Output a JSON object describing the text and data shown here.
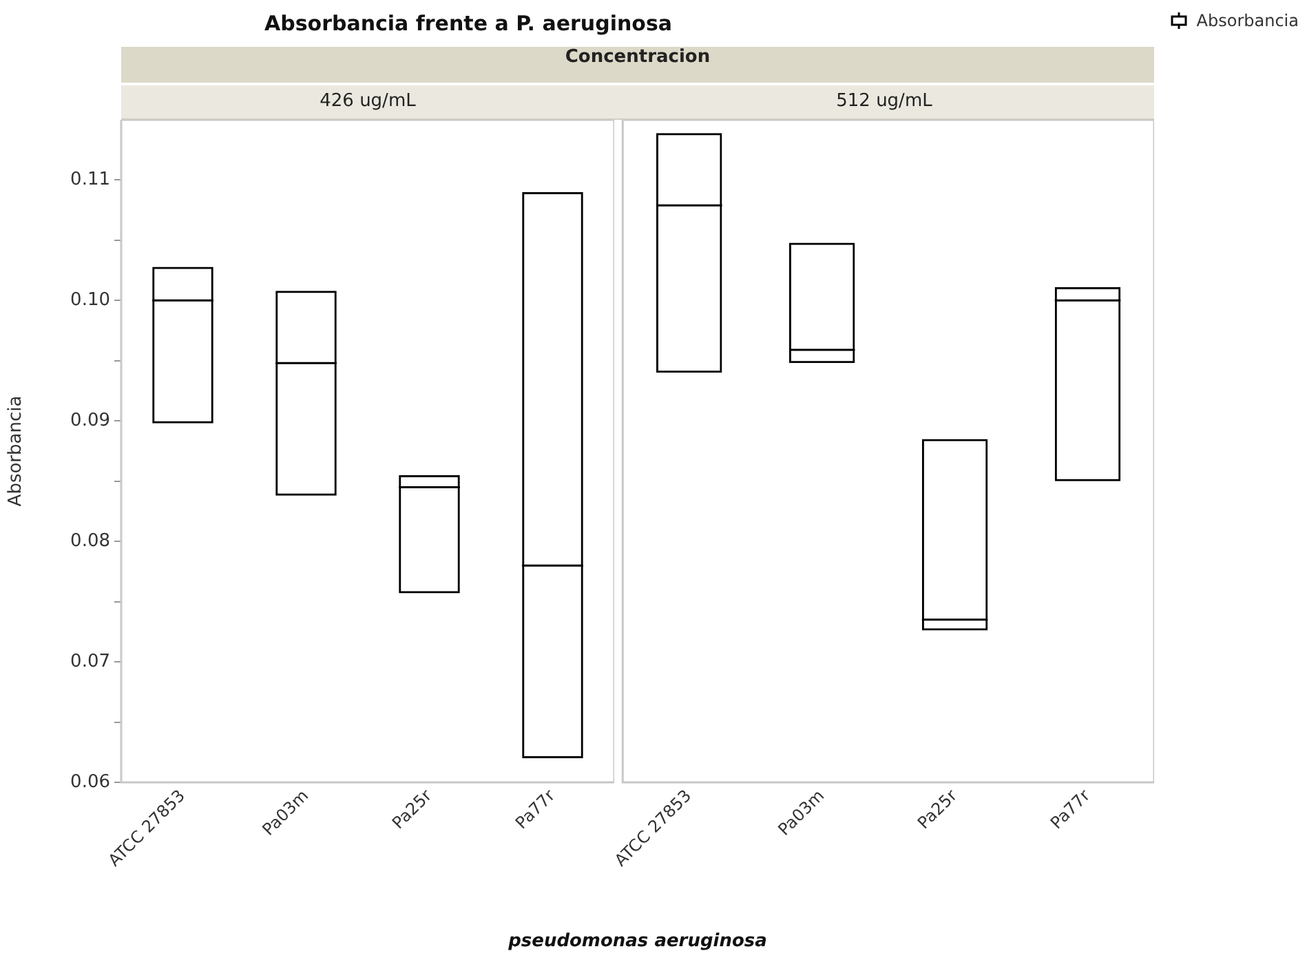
{
  "chart_data": [
    {
      "type": "box",
      "title": "Absorbancia frente a P. aeruginosa",
      "annotations": [
        "Concentracion"
      ],
      "subtitle": "426 ug/mL",
      "xlabel": "pseudomonas aeruginosa",
      "ylabel": "Absorbancia",
      "categories": [
        "ATCC 27853",
        "Pa03m",
        "Pa25r",
        "Pa77r"
      ],
      "series": [
        {
          "color": "#000000",
          "boxes": [
            {
              "low": 0.0898,
              "q1": 0.0898,
              "median": 0.1,
              "q3": 0.1028,
              "high": 0.1028
            },
            {
              "low": 0.0838,
              "q1": 0.0838,
              "median": 0.0948,
              "q3": 0.1008,
              "high": 0.1008
            },
            {
              "low": 0.0757,
              "q1": 0.0757,
              "median": 0.0845,
              "q3": 0.0855,
              "high": 0.0855
            },
            {
              "low": 0.062,
              "q1": 0.062,
              "median": 0.078,
              "q3": 0.109,
              "high": 0.109
            }
          ]
        }
      ],
      "ylim": [
        0.06,
        0.115
      ],
      "yticks": [
        0.06,
        {
          "value": 0.065,
          "label": null
        },
        0.07,
        {
          "value": 0.075,
          "label": null
        },
        0.08,
        {
          "value": 0.085,
          "label": null
        },
        0.09,
        {
          "value": 0.095,
          "label": null
        },
        {
          "value": 0.1,
          "label": "0.10"
        },
        {
          "value": 0.105,
          "label": null
        },
        0.11
      ],
      "grid": false
    },
    {
      "type": "box",
      "subtitle": "512 ug/mL",
      "categories": [
        "ATCC 27853",
        "Pa03m",
        "Pa25r",
        "Pa77r"
      ],
      "series": [
        {
          "name": "Absorbancia",
          "color": "#000000",
          "boxes": [
            {
              "low": 0.094,
              "q1": 0.094,
              "median": 0.1079,
              "q3": 0.1139,
              "high": 0.1139
            },
            {
              "low": 0.0948,
              "q1": 0.0948,
              "median": 0.0959,
              "q3": 0.1048,
              "high": 0.1048
            },
            {
              "low": 0.0726,
              "q1": 0.0726,
              "median": 0.0735,
              "q3": 0.0885,
              "high": 0.0885
            },
            {
              "low": 0.085,
              "q1": 0.085,
              "median": 0.1,
              "q3": 0.1011,
              "high": 0.1011
            }
          ]
        }
      ],
      "ylim": [
        0.06,
        0.115
      ],
      "tick_labels": "x",
      "grid": false,
      "legend": "top right"
    }
  ]
}
